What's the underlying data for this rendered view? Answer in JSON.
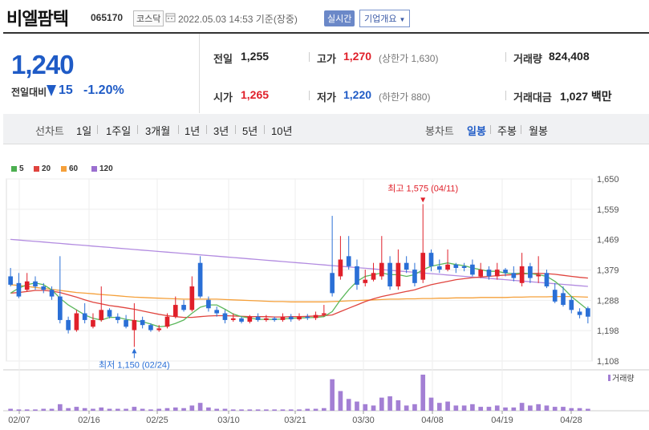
{
  "header": {
    "stock_name": "비엘팜텍",
    "stock_code": "065170",
    "market": "코스닥",
    "timestamp": "2022.05.03 14:53 기준(장중)",
    "realtime_label": "실시간",
    "overview_label": "기업개요"
  },
  "price": {
    "current": "1,240",
    "change_label": "전일대비",
    "change_value": "15",
    "change_pct": "-1.20%"
  },
  "stats": {
    "prev_close_label": "전일",
    "prev_close": "1,255",
    "high_label": "고가",
    "high": "1,270",
    "upper_limit": "(상한가 1,630)",
    "volume_label": "거래량",
    "volume": "824,408",
    "open_label": "시가",
    "open": "1,265",
    "low_label": "저가",
    "low": "1,220",
    "lower_limit": "(하한가 880)",
    "amount_label": "거래대금",
    "amount": "1,027 백만"
  },
  "tabs": {
    "line_chart_label": "선차트",
    "periods": [
      "1일",
      "1주일",
      "3개월",
      "1년",
      "3년",
      "5년",
      "10년"
    ],
    "candle_label": "봉차트",
    "candle_periods": [
      "일봉",
      "주봉",
      "월봉"
    ],
    "active_candle": "일봉"
  },
  "legend": [
    {
      "label": "5",
      "color": "#4caf50"
    },
    {
      "label": "20",
      "color": "#e0443e"
    },
    {
      "label": "60",
      "color": "#f5a03a"
    },
    {
      "label": "120",
      "color": "#9b6fd0"
    }
  ],
  "chart_data": {
    "type": "candlestick",
    "y_ticks": [
      "1,650",
      "1,559",
      "1,469",
      "1,379",
      "1,288",
      "1,198",
      "1,108"
    ],
    "ylim": [
      1108,
      1650
    ],
    "x_ticks": [
      "02/07",
      "02/16",
      "02/25",
      "03/10",
      "03/21",
      "03/30",
      "04/08",
      "04/19",
      "04/28"
    ],
    "volume_label": "거래량",
    "annotations": {
      "high": "최고 1,575 (04/11)",
      "low": "최저 1,150 (02/24)"
    },
    "candles": [
      [
        1360,
        1335,
        1385,
        1330
      ],
      [
        1340,
        1300,
        1370,
        1295
      ],
      [
        1320,
        1345,
        1370,
        1315
      ],
      [
        1345,
        1330,
        1360,
        1320
      ],
      [
        1330,
        1320,
        1340,
        1310
      ],
      [
        1320,
        1300,
        1330,
        1290
      ],
      [
        1300,
        1230,
        1420,
        1220
      ],
      [
        1230,
        1200,
        1240,
        1190
      ],
      [
        1200,
        1250,
        1260,
        1195
      ],
      [
        1250,
        1230,
        1280,
        1220
      ],
      [
        1210,
        1230,
        1250,
        1205
      ],
      [
        1230,
        1260,
        1330,
        1225
      ],
      [
        1260,
        1240,
        1265,
        1235
      ],
      [
        1240,
        1230,
        1250,
        1220
      ],
      [
        1230,
        1210,
        1245,
        1205
      ],
      [
        1200,
        1230,
        1280,
        1150
      ],
      [
        1230,
        1215,
        1240,
        1205
      ],
      [
        1215,
        1200,
        1220,
        1195
      ],
      [
        1200,
        1205,
        1215,
        1195
      ],
      [
        1210,
        1240,
        1250,
        1205
      ],
      [
        1240,
        1275,
        1300,
        1235
      ],
      [
        1275,
        1260,
        1290,
        1255
      ],
      [
        1260,
        1330,
        1360,
        1255
      ],
      [
        1400,
        1300,
        1420,
        1295
      ],
      [
        1290,
        1265,
        1300,
        1255
      ],
      [
        1260,
        1250,
        1270,
        1240
      ],
      [
        1250,
        1230,
        1260,
        1220
      ],
      [
        1230,
        1235,
        1250,
        1225
      ],
      [
        1235,
        1225,
        1240,
        1220
      ],
      [
        1225,
        1240,
        1245,
        1220
      ],
      [
        1240,
        1230,
        1250,
        1225
      ],
      [
        1230,
        1235,
        1245,
        1225
      ],
      [
        1235,
        1230,
        1240,
        1225
      ],
      [
        1230,
        1240,
        1250,
        1225
      ],
      [
        1240,
        1232,
        1248,
        1225
      ],
      [
        1232,
        1240,
        1250,
        1228
      ],
      [
        1240,
        1236,
        1248,
        1230
      ],
      [
        1236,
        1245,
        1255,
        1230
      ],
      [
        1245,
        1250,
        1275,
        1240
      ],
      [
        1370,
        1310,
        1540,
        1300
      ],
      [
        1360,
        1410,
        1480,
        1350
      ],
      [
        1420,
        1390,
        1480,
        1380
      ],
      [
        1390,
        1335,
        1410,
        1320
      ],
      [
        1340,
        1350,
        1380,
        1330
      ],
      [
        1350,
        1370,
        1400,
        1345
      ],
      [
        1360,
        1400,
        1480,
        1350
      ],
      [
        1400,
        1330,
        1420,
        1320
      ],
      [
        1330,
        1400,
        1440,
        1320
      ],
      [
        1400,
        1380,
        1420,
        1370
      ],
      [
        1380,
        1340,
        1400,
        1330
      ],
      [
        1350,
        1430,
        1575,
        1340
      ],
      [
        1430,
        1390,
        1440,
        1375
      ],
      [
        1390,
        1380,
        1410,
        1370
      ],
      [
        1380,
        1395,
        1440,
        1375
      ],
      [
        1395,
        1385,
        1400,
        1370
      ],
      [
        1390,
        1385,
        1400,
        1375
      ],
      [
        1395,
        1365,
        1410,
        1360
      ],
      [
        1360,
        1380,
        1400,
        1355
      ],
      [
        1380,
        1360,
        1390,
        1350
      ],
      [
        1360,
        1380,
        1400,
        1350
      ],
      [
        1380,
        1370,
        1385,
        1360
      ],
      [
        1370,
        1355,
        1390,
        1345
      ],
      [
        1340,
        1390,
        1430,
        1330
      ],
      [
        1390,
        1355,
        1400,
        1340
      ],
      [
        1360,
        1365,
        1420,
        1340
      ],
      [
        1370,
        1330,
        1380,
        1325
      ],
      [
        1320,
        1285,
        1340,
        1280
      ],
      [
        1310,
        1275,
        1330,
        1270
      ],
      [
        1290,
        1260,
        1300,
        1250
      ],
      [
        1255,
        1245,
        1265,
        1235
      ],
      [
        1265,
        1240,
        1270,
        1220
      ]
    ],
    "ma5": [
      1310,
      1325,
      1335,
      1340,
      1335,
      1320,
      1295,
      1275,
      1260,
      1245,
      1235,
      1230,
      1238,
      1238,
      1232,
      1228,
      1225,
      1218,
      1210,
      1212,
      1220,
      1230,
      1250,
      1268,
      1275,
      1275,
      1262,
      1248,
      1240,
      1236,
      1232,
      1232,
      1232,
      1233,
      1235,
      1236,
      1237,
      1238,
      1240,
      1255,
      1290,
      1320,
      1345,
      1360,
      1365,
      1370,
      1365,
      1365,
      1360,
      1365,
      1380,
      1390,
      1395,
      1400,
      1395,
      1392,
      1385,
      1380,
      1375,
      1375,
      1370,
      1368,
      1370,
      1368,
      1365,
      1360,
      1345,
      1325,
      1300,
      1280,
      1260
    ],
    "ma20": [
      1310,
      1312,
      1315,
      1318,
      1318,
      1316,
      1312,
      1305,
      1298,
      1290,
      1283,
      1278,
      1273,
      1270,
      1266,
      1262,
      1257,
      1252,
      1247,
      1243,
      1240,
      1238,
      1238,
      1240,
      1242,
      1243,
      1243,
      1242,
      1241,
      1240,
      1240,
      1240,
      1239,
      1239,
      1240,
      1240,
      1241,
      1242,
      1243,
      1245,
      1255,
      1265,
      1275,
      1285,
      1293,
      1300,
      1305,
      1310,
      1315,
      1320,
      1328,
      1335,
      1340,
      1345,
      1350,
      1353,
      1356,
      1358,
      1360,
      1362,
      1364,
      1365,
      1367,
      1368,
      1369,
      1368,
      1366,
      1363,
      1360,
      1357,
      1355
    ],
    "ma60": [
      1335,
      1333,
      1330,
      1327,
      1324,
      1321,
      1318,
      1315,
      1312,
      1310,
      1308,
      1306,
      1304,
      1302,
      1300,
      1298,
      1297,
      1296,
      1295,
      1294,
      1293,
      1292,
      1292,
      1292,
      1292,
      1292,
      1291,
      1290,
      1289,
      1288,
      1287,
      1286,
      1285,
      1285,
      1284,
      1284,
      1284,
      1284,
      1284,
      1285,
      1286,
      1287,
      1288,
      1289,
      1290,
      1291,
      1292,
      1292,
      1293,
      1293,
      1294,
      1294,
      1295,
      1295,
      1296,
      1296,
      1296,
      1297,
      1297,
      1297,
      1297,
      1298,
      1298,
      1299,
      1299,
      1299,
      1300,
      1300,
      1300,
      1299,
      1298
    ],
    "ma120": [
      1470,
      1468,
      1466,
      1464,
      1462,
      1460,
      1458,
      1456,
      1454,
      1452,
      1450,
      1448,
      1446,
      1444,
      1442,
      1440,
      1438,
      1436,
      1434,
      1432,
      1430,
      1428,
      1426,
      1424,
      1422,
      1420,
      1418,
      1416,
      1414,
      1412,
      1410,
      1408,
      1406,
      1404,
      1402,
      1400,
      1398,
      1396,
      1394,
      1392,
      1390,
      1388,
      1386,
      1384,
      1382,
      1380,
      1378,
      1376,
      1374,
      1372,
      1370,
      1368,
      1366,
      1364,
      1362,
      1360,
      1358,
      1356,
      1354,
      1352,
      1350,
      1348,
      1346,
      1344,
      1342,
      1340,
      1338,
      1336,
      1334,
      1332,
      1330
    ],
    "volumes": [
      3,
      2,
      2,
      2,
      3,
      3,
      10,
      4,
      6,
      4,
      3,
      5,
      3,
      3,
      3,
      6,
      3,
      2,
      3,
      4,
      5,
      4,
      8,
      12,
      5,
      3,
      3,
      2,
      2,
      2,
      2,
      2,
      2,
      2,
      2,
      2,
      3,
      3,
      4,
      48,
      30,
      18,
      14,
      10,
      8,
      20,
      22,
      16,
      8,
      10,
      55,
      20,
      12,
      14,
      8,
      8,
      10,
      6,
      6,
      8,
      5,
      5,
      12,
      8,
      10,
      8,
      6,
      6,
      4,
      4,
      3
    ]
  }
}
